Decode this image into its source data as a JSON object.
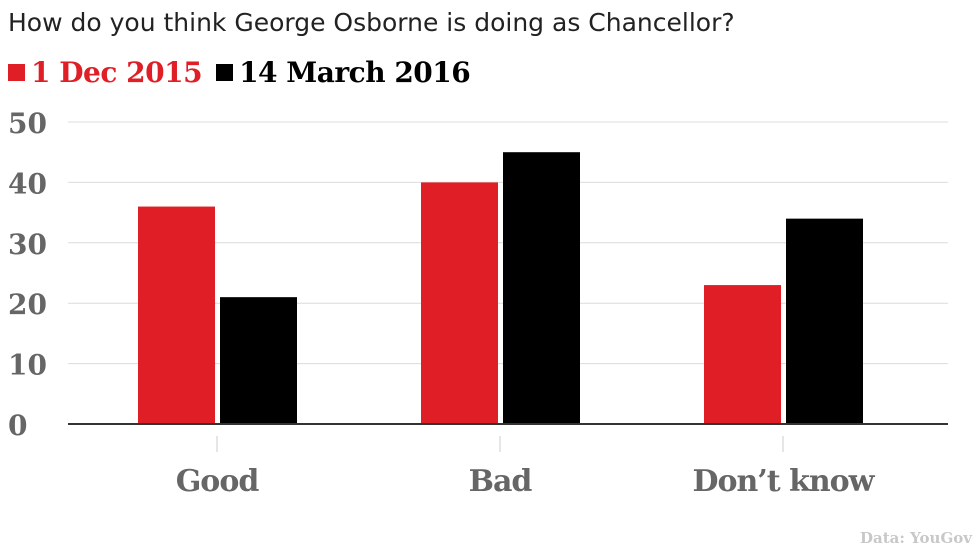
{
  "title": "How do you think George Osborne is doing as Chancellor?",
  "source": "Data: YouGov",
  "chart_data": {
    "type": "bar",
    "title": "How do you think George Osborne is doing as Chancellor?",
    "categories": [
      "Good",
      "Bad",
      "Don’t know"
    ],
    "series": [
      {
        "name": "1 Dec 2015",
        "color": "#e01e26",
        "values": [
          36,
          40,
          23
        ]
      },
      {
        "name": "14 March 2016",
        "color": "#000000",
        "values": [
          21,
          45,
          34
        ]
      }
    ],
    "yticks": [
      "0",
      "10",
      "20",
      "30",
      "40",
      "50"
    ],
    "ylim": [
      0,
      50
    ],
    "xlabel": "",
    "ylabel": "",
    "grid": true,
    "legend": "top-left"
  }
}
